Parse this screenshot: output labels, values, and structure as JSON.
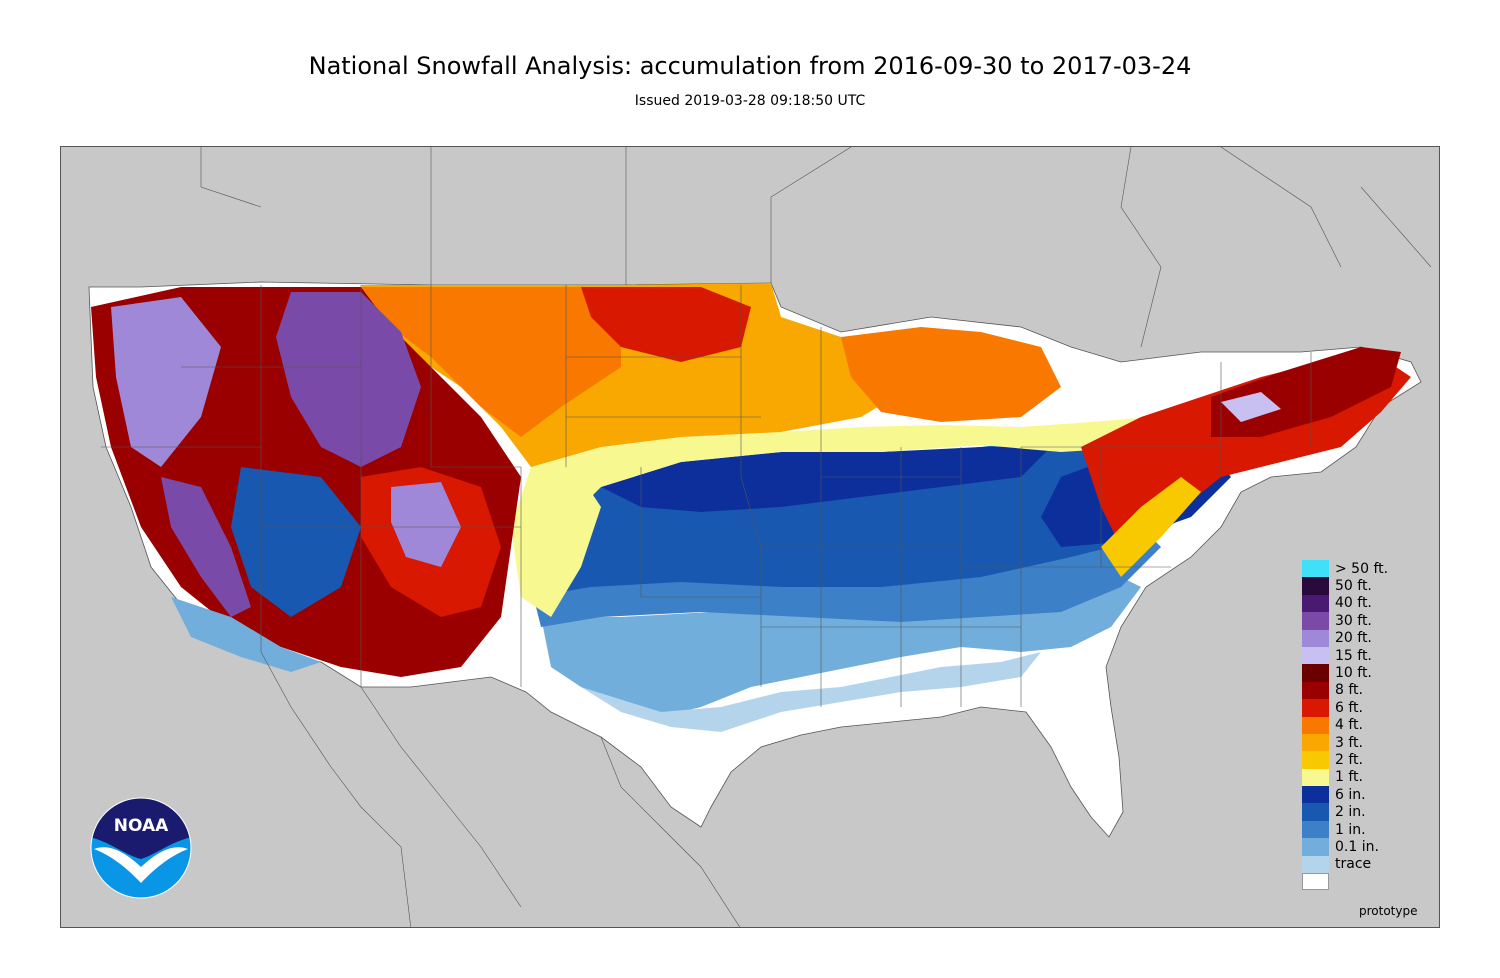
{
  "title": "National Snowfall Analysis: accumulation from 2016-09-30 to 2017-03-24",
  "subtitle": "Issued 2019-03-28 09:18:50 UTC",
  "watermark": "prototype",
  "logo_text": "NOAA",
  "map": {
    "background_color": "#c8c8c8",
    "land_color": "#ffffff",
    "border_color": "#555555"
  },
  "legend": [
    {
      "label": "> 50 ft.",
      "color": "#40e0f8"
    },
    {
      "label": "50 ft.",
      "color": "#2a0a3a"
    },
    {
      "label": "40 ft.",
      "color": "#4a1a72"
    },
    {
      "label": "30 ft.",
      "color": "#7a4aa8"
    },
    {
      "label": "20 ft.",
      "color": "#a088d8"
    },
    {
      "label": "15 ft.",
      "color": "#c8c0f0"
    },
    {
      "label": "10 ft.",
      "color": "#6a0000"
    },
    {
      "label": "8 ft.",
      "color": "#9a0000"
    },
    {
      "label": "6 ft.",
      "color": "#d81800"
    },
    {
      "label": "4 ft.",
      "color": "#f87800"
    },
    {
      "label": "3 ft.",
      "color": "#f8a800"
    },
    {
      "label": "2 ft.",
      "color": "#f8c800"
    },
    {
      "label": "1 ft.",
      "color": "#f8f890"
    },
    {
      "label": "6 in.",
      "color": "#0c2f9c"
    },
    {
      "label": "2 in.",
      "color": "#1858b0"
    },
    {
      "label": "1 in.",
      "color": "#3c80c8"
    },
    {
      "label": "0.1 in.",
      "color": "#72aedc"
    },
    {
      "label": "trace",
      "color": "#b4d4ec"
    },
    {
      "label": "",
      "color": "#ffffff"
    }
  ]
}
